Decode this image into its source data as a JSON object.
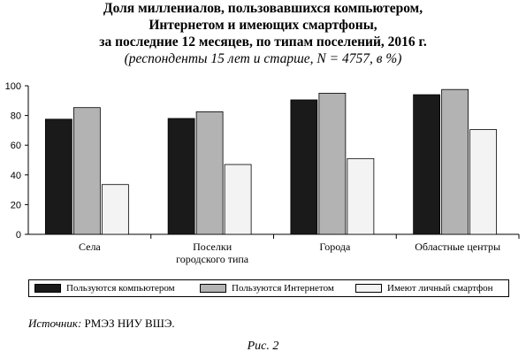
{
  "title_lines": [
    "Доля миллениалов, пользовавшихся компьютером,",
    "Интернетом и имеющих смартфоны,",
    "за последние 12 месяцев, по типам поселений, 2016 г."
  ],
  "subtitle": "(респонденты 15 лет и старше, N = 4757, в %)",
  "chart_data": {
    "type": "bar",
    "categories": [
      [
        "Села"
      ],
      [
        "Поселки",
        "городского типа"
      ],
      [
        "Города"
      ],
      [
        "Областные центры"
      ]
    ],
    "series": [
      {
        "name": "Пользуются компьютером",
        "color": "#1a1a1a",
        "values": [
          77.5,
          78,
          90.5,
          94
        ]
      },
      {
        "name": "Пользуются Интернетом",
        "color": "#b3b3b3",
        "values": [
          85.3,
          82.5,
          95,
          97.5
        ]
      },
      {
        "name": "Имеют личный смартфон",
        "color": "#f3f3f3",
        "values": [
          33.5,
          47,
          51,
          70.5
        ]
      }
    ],
    "ylim": [
      0,
      100
    ],
    "yticks": [
      0,
      20,
      40,
      60,
      80,
      100
    ],
    "grid": false,
    "legend": "bottom"
  },
  "source": {
    "lead": "Источник:",
    "text": " РМЭЗ НИУ ВШЭ."
  },
  "figure_caption": "Рис. 2"
}
